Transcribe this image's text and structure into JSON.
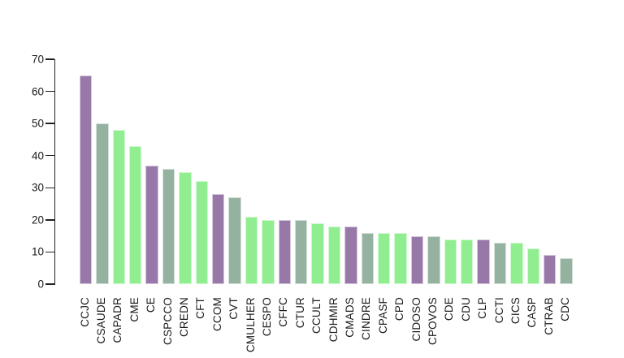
{
  "chart_data": {
    "type": "bar",
    "title": "",
    "xlabel": "",
    "ylabel": "",
    "categories": [
      "CCJC",
      "CSAUDE",
      "CAPADR",
      "CME",
      "CE",
      "CSPCCO",
      "CREDN",
      "CFT",
      "CCOM",
      "CVT",
      "CMULHER",
      "CESPO",
      "CFFC",
      "CTUR",
      "CCULT",
      "CDHMIR",
      "CMADS",
      "CINDRE",
      "CPASF",
      "CPD",
      "CIDOSO",
      "CPOVOS",
      "CDE",
      "CDU",
      "CLP",
      "CCTI",
      "CICS",
      "CASP",
      "CTRAB",
      "CDC"
    ],
    "values": [
      65,
      50,
      48,
      43,
      37,
      36,
      35,
      32,
      28,
      27,
      21,
      20,
      20,
      20,
      19,
      18,
      18,
      16,
      16,
      16,
      15,
      15,
      14,
      14,
      14,
      13,
      13,
      11,
      9,
      8
    ],
    "bar_colors": [
      "#9878A9",
      "#95B2A1",
      "#90EE90",
      "#90EE90",
      "#9878A9",
      "#95B2A1",
      "#90EE90",
      "#90EE90",
      "#9878A9",
      "#95B2A1",
      "#90EE90",
      "#90EE90",
      "#9878A9",
      "#95B2A1",
      "#90EE90",
      "#90EE90",
      "#9878A9",
      "#95B2A1",
      "#90EE90",
      "#90EE90",
      "#9878A9",
      "#95B2A1",
      "#90EE90",
      "#90EE90",
      "#9878A9",
      "#95B2A1",
      "#90EE90",
      "#90EE90",
      "#9878A9",
      "#95B2A1"
    ],
    "palette": {
      "purple": "#9878A9",
      "sage": "#95B2A1",
      "light_green": "#90EE90"
    },
    "ylim": [
      0,
      70
    ],
    "yticks": [
      0,
      10,
      20,
      30,
      40,
      50,
      60,
      70
    ],
    "grid": false,
    "legend": "none",
    "background": "#ffffff",
    "axis_color": "#222222",
    "text_color": "#1a1a1a",
    "x_label_rotation_degrees": 90,
    "x_label_reading_direction": "bottom-to-top"
  }
}
